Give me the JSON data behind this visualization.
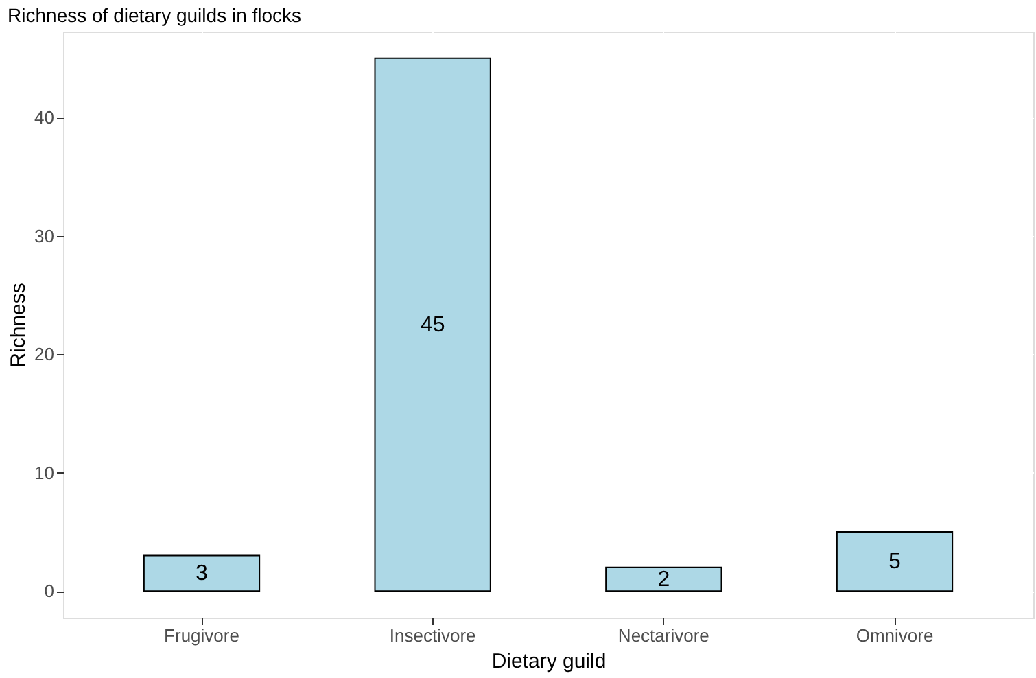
{
  "chart_data": {
    "type": "bar",
    "title": "Richness of dietary guilds in flocks",
    "xlabel": "Dietary guild",
    "ylabel": "Richness",
    "categories": [
      "Frugivore",
      "Insectivore",
      "Nectarivore",
      "Omnivore"
    ],
    "values": [
      3,
      45,
      2,
      5
    ],
    "color": "#add8e6",
    "ylim": [
      -2.25,
      47.25
    ],
    "yticks": [
      0,
      10,
      20,
      30,
      40
    ],
    "grid": true,
    "data_labels": true
  }
}
